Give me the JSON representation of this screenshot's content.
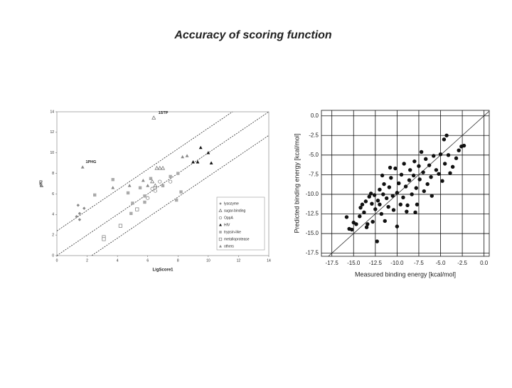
{
  "title": "Accuracy of scoring function",
  "chart_data": [
    {
      "type": "scatter",
      "xlabel": "LigScore1",
      "ylabel": "pKi",
      "xlim": [
        0,
        14
      ],
      "ylim": [
        0,
        14
      ],
      "xticks": [
        0,
        2,
        4,
        6,
        8,
        10,
        12,
        14
      ],
      "yticks": [
        0,
        2,
        4,
        6,
        8,
        10,
        12,
        14
      ],
      "grid": false,
      "legend": "lower right",
      "reference_lines": [
        {
          "slope": 1,
          "intercept": 2.4
        },
        {
          "slope": 1,
          "intercept": 0
        },
        {
          "slope": 1,
          "intercept": -2.3
        }
      ],
      "annotations": [
        {
          "text": "1STP",
          "x": 6.7,
          "y": 13.9
        },
        {
          "text": "1PHG",
          "x": 1.9,
          "y": 9.1
        }
      ],
      "series": [
        {
          "name": "lysozyme",
          "color": "#888888",
          "marker": "diamond",
          "x": [
            1.3,
            1.5,
            1.5,
            1.8,
            1.4
          ],
          "values": [
            3.8,
            4.1,
            3.5,
            4.6,
            4.9
          ]
        },
        {
          "name": "sugar-binding",
          "color": "#666666",
          "marker": "open-triangle",
          "x": [
            6.4,
            6.5,
            6.8,
            6.3,
            7.0,
            6.6
          ],
          "values": [
            13.4,
            6.8,
            8.5,
            7.2,
            8.5,
            8.5
          ]
        },
        {
          "name": "OppA",
          "color": "#777777",
          "marker": "open-circle",
          "x": [
            6.5,
            6.0,
            6.8,
            7.5,
            6.3
          ],
          "values": [
            6.3,
            5.6,
            7.2,
            7.2,
            6.5
          ]
        },
        {
          "name": "HIV",
          "color": "#111111",
          "marker": "triangle",
          "x": [
            9.5,
            10.0,
            9.0,
            10.2,
            9.3
          ],
          "values": [
            10.5,
            10.0,
            9.1,
            9.0,
            9.1
          ]
        },
        {
          "name": "trypsin-like",
          "color": "#aaaaaa",
          "marker": "square",
          "x": [
            2.5,
            3.7,
            4.7,
            5.0,
            5.5,
            5.8,
            6.2,
            7.0,
            7.5,
            8.0,
            8.2,
            4.9,
            7.9,
            5.8
          ],
          "values": [
            5.9,
            7.4,
            6.1,
            5.1,
            6.6,
            5.8,
            7.5,
            6.8,
            7.7,
            8.0,
            6.2,
            4.1,
            5.4,
            5.2
          ]
        },
        {
          "name": "metalloprotease",
          "color": "#777777",
          "marker": "open-square",
          "x": [
            3.1,
            3.1,
            4.2,
            5.3
          ],
          "values": [
            1.8,
            1.6,
            2.9,
            4.5
          ]
        },
        {
          "name": "others",
          "color": "#888888",
          "marker": "triangle",
          "x": [
            1.7,
            3.7,
            4.8,
            8.3,
            8.6,
            5.7,
            6.0
          ],
          "values": [
            8.6,
            6.6,
            6.8,
            9.6,
            9.7,
            7.3,
            6.8
          ]
        }
      ]
    },
    {
      "type": "scatter",
      "xlabel": "Measured binding energy [kcal/mol]",
      "ylabel": "Predicted binding energy [kcal/mol]",
      "xlim": [
        -18.7,
        0.6
      ],
      "ylim": [
        -17.9,
        0.7
      ],
      "xticks": [
        {
          "value": -17.5,
          "label": "-17.5"
        },
        {
          "value": -15,
          "label": "-15.0"
        },
        {
          "value": -12.5,
          "label": "-12.5"
        },
        {
          "value": -10,
          "label": "-10.0"
        },
        {
          "value": -7.5,
          "label": "-7.5"
        },
        {
          "value": -5,
          "label": "-5.0"
        },
        {
          "value": -2.5,
          "label": "-2.5"
        },
        {
          "value": 0,
          "label": "0.0"
        }
      ],
      "yticks": [
        {
          "value": -17.5,
          "label": "-17.5"
        },
        {
          "value": -15,
          "label": "-15.0"
        },
        {
          "value": -12.5,
          "label": "-12.5"
        },
        {
          "value": -10,
          "label": "-10.0"
        },
        {
          "value": -7.5,
          "label": "-7.5"
        },
        {
          "value": -5,
          "label": "-5.0"
        },
        {
          "value": -2.5,
          "label": "-2.5"
        },
        {
          "value": 0,
          "label": "0.0"
        }
      ],
      "grid": true,
      "reference_lines": [
        {
          "slope": 1,
          "intercept": 0
        }
      ],
      "series": [
        {
          "color": "#111111",
          "marker": "circle",
          "x": [
            -15.8,
            -15.5,
            -15.2,
            -15,
            -14.7,
            -14.3,
            -14.2,
            -14,
            -13.8,
            -13.5,
            -13.4,
            -13.2,
            -13,
            -12.9,
            -12.8,
            -12.6,
            -12.5,
            -12.3,
            -12.2,
            -12,
            -12,
            -11.8,
            -11.6,
            -11.5,
            -11.4,
            -11.2,
            -11,
            -10.9,
            -10.7,
            -10.5,
            -10.4,
            -10.2,
            -10,
            -10,
            -9.8,
            -9.6,
            -9.5,
            -9.3,
            -9.2,
            -9,
            -8.8,
            -8.6,
            -8.5,
            -8.3,
            -8.1,
            -8,
            -7.8,
            -7.7,
            -7.5,
            -7.4,
            -7.2,
            -7,
            -6.9,
            -6.7,
            -6.5,
            -6.3,
            -6.1,
            -6,
            -5.8,
            -5.5,
            -5.2,
            -5,
            -4.8,
            -4.6,
            -4.5,
            -4.3,
            -4.1,
            -3.9,
            -3.6,
            -3.2,
            -2.9,
            -2.6,
            -2.3,
            -8.9,
            -7.9,
            -11.7,
            -13.6,
            -10.8
          ],
          "values": [
            -12.9,
            -14.4,
            -14.5,
            -13.6,
            -13.8,
            -12.8,
            -11.7,
            -11.3,
            -12.3,
            -14.2,
            -13.8,
            -10.3,
            -9.9,
            -11.2,
            -13.5,
            -10.1,
            -11.9,
            -16,
            -10.8,
            -9.4,
            -11.3,
            -12.5,
            -10,
            -8.7,
            -13.4,
            -10.5,
            -11.6,
            -9.1,
            -7.9,
            -10.2,
            -12,
            -6.7,
            -9.8,
            -14.1,
            -8.6,
            -11.3,
            -7.5,
            -10.4,
            -6.1,
            -9,
            -11.4,
            -8.2,
            -6.9,
            -10,
            -7.6,
            -5.8,
            -9.2,
            -11.3,
            -6.4,
            -8.1,
            -4.6,
            -7.2,
            -9.6,
            -5.5,
            -8.7,
            -6.3,
            -7.8,
            -10.2,
            -5.1,
            -6.9,
            -7.4,
            -4.9,
            -8.3,
            -3,
            -6.1,
            -2.5,
            -5,
            -7.3,
            -6.5,
            -5.4,
            -4.4,
            -3.9,
            -3.8,
            -12.2,
            -12.3,
            -7.6,
            -10.9,
            -6.6
          ]
        }
      ]
    }
  ]
}
